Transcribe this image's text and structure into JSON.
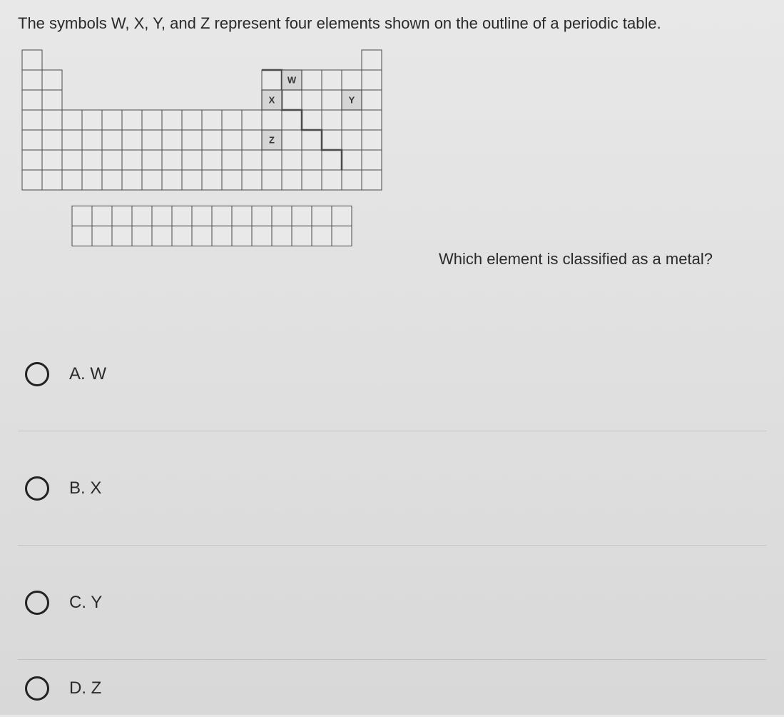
{
  "question": "The symbols W, X, Y, and Z represent four elements shown on the outline of a periodic table.",
  "sub_question_pre": "Which ele",
  "sub_question_mid": "m",
  "sub_question_post": "ent is classified as a metal?",
  "options": [
    {
      "id": "A",
      "label": "A. W"
    },
    {
      "id": "B",
      "label": "B. X"
    },
    {
      "id": "C",
      "label": "C. Y"
    },
    {
      "id": "D",
      "label": "D. Z"
    }
  ],
  "periodic": {
    "cell": 28,
    "stroke": "#4a4a4a",
    "fill": "#e9e9e9",
    "stair_fill": "#d5d5d5",
    "label_font": 13,
    "labels": {
      "W": {
        "col": 14,
        "row": 2
      },
      "X": {
        "col": 13,
        "row": 3
      },
      "Y": {
        "col": 17,
        "row": 3
      },
      "Z": {
        "col": 13,
        "row": 5
      }
    },
    "stair_segments": [
      {
        "c": 13,
        "r": 2
      },
      {
        "c": 13,
        "r": 3
      },
      {
        "c": 14,
        "r": 3
      },
      {
        "c": 14,
        "r": 4
      },
      {
        "c": 15,
        "r": 4
      },
      {
        "c": 15,
        "r": 5
      },
      {
        "c": 16,
        "r": 5
      },
      {
        "c": 16,
        "r": 6
      }
    ]
  }
}
